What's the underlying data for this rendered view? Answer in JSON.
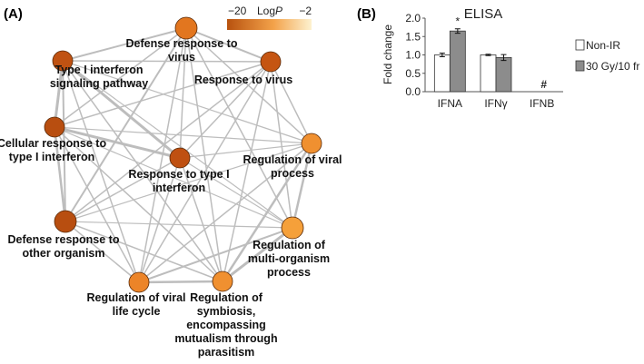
{
  "panels": {
    "a_label": "(A)",
    "b_label": "(B)"
  },
  "network": {
    "colorbar": {
      "min_label": "−20",
      "title_prefix": "Log",
      "title_italic": "P",
      "max_label": "−2",
      "color_low": "#b8520f",
      "color_high": "#fdf2d0"
    },
    "nodes": [
      {
        "id": "defense-virus",
        "lines": [
          "Defense response to",
          "virus"
        ],
        "color": "#e2761f"
      },
      {
        "id": "response-virus",
        "lines": [
          "Response to virus"
        ],
        "color": "#c55512"
      },
      {
        "id": "reg-viral-process",
        "lines": [
          "Regulation of viral",
          "process"
        ],
        "color": "#f09030"
      },
      {
        "id": "reg-multi-organism",
        "lines": [
          "Regulation of",
          "multi-organism",
          "process"
        ],
        "color": "#f5a03a"
      },
      {
        "id": "reg-symbiosis",
        "lines": [
          "Regulation of",
          "symbiosis,",
          "encompassing",
          "mutualism through",
          "parasitism"
        ],
        "color": "#f09030"
      },
      {
        "id": "reg-viral-life",
        "lines": [
          "Regulation of viral",
          "life cycle"
        ],
        "color": "#ec8428"
      },
      {
        "id": "defense-other",
        "lines": [
          "Defense response to",
          "other organism"
        ],
        "color": "#b84e10"
      },
      {
        "id": "cellular-type1",
        "lines": [
          "Cellular response to",
          "type I interferon"
        ],
        "color": "#b84e10"
      },
      {
        "id": "type1-pathway",
        "lines": [
          "Type I interferon",
          "signaling pathway"
        ],
        "color": "#c05212"
      },
      {
        "id": "response-type1",
        "lines": [
          "Response to type I",
          "interferon"
        ],
        "color": "#bf5011"
      }
    ]
  },
  "chart_data": {
    "type": "bar",
    "title": "ELISA",
    "ylabel": "Fold change",
    "xlabel": "",
    "categories": [
      "IFNA",
      "IFNγ",
      "IFNB"
    ],
    "ylim": [
      0,
      2.0
    ],
    "yticks": [
      "0.0",
      "0.5",
      "1.0",
      "1.5",
      "2.0"
    ],
    "series": [
      {
        "name": "Non-IR",
        "values": [
          1.0,
          1.0,
          null
        ],
        "errors": [
          0.05,
          0.02,
          null
        ],
        "color": "#ffffff"
      },
      {
        "name": "30 Gy/10 fr",
        "values": [
          1.65,
          0.93,
          null
        ],
        "errors": [
          0.06,
          0.08,
          null
        ],
        "color": "#8c8c8c"
      }
    ],
    "annotations": [
      {
        "category": "IFNA",
        "text": "*"
      },
      {
        "category": "IFNB",
        "text": "#"
      }
    ],
    "legend_position": "right"
  }
}
